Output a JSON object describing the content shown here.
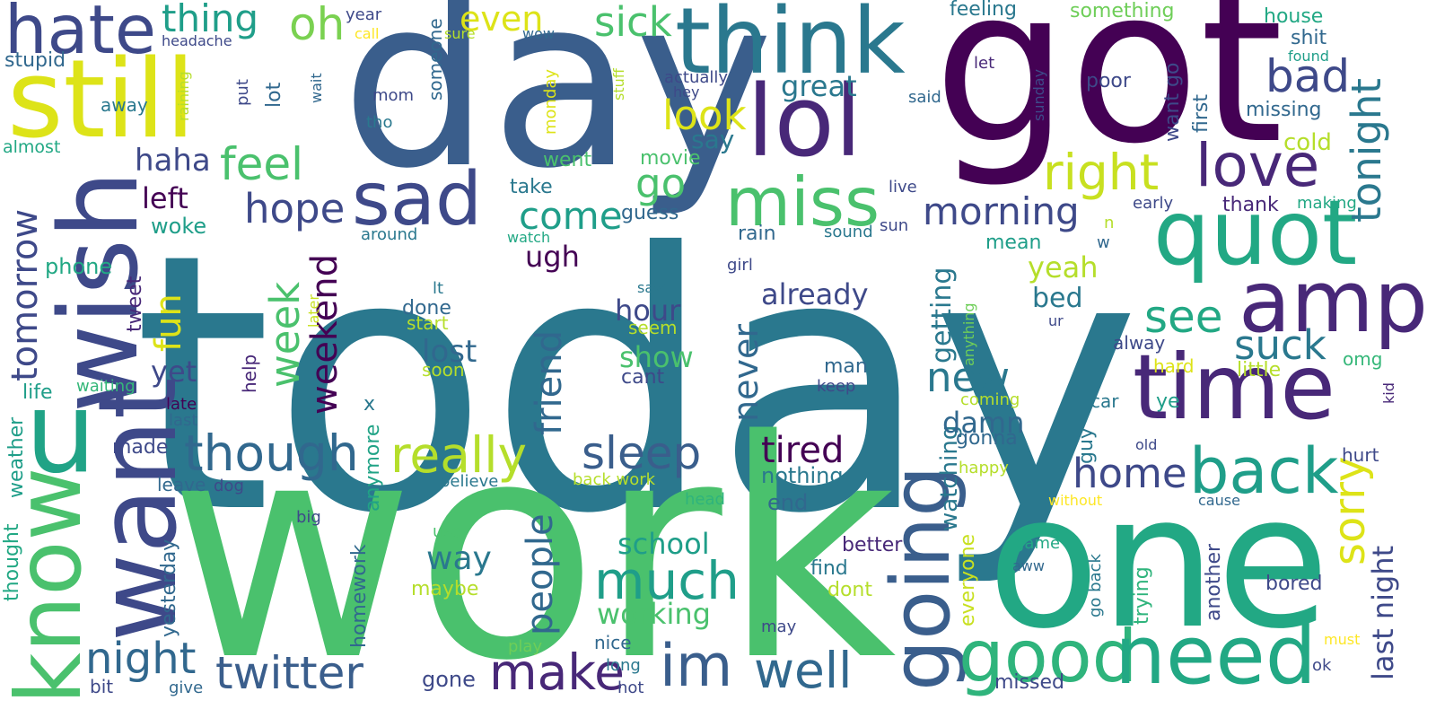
{
  "palette": {
    "p1": "#440154",
    "p2": "#482878",
    "p3": "#3e4989",
    "p4": "#31688e",
    "p5": "#26828e",
    "p6": "#1f9e89",
    "p7": "#35b779",
    "p8": "#6ece58",
    "p9": "#b5de2b",
    "p10": "#fde725"
  },
  "words": [
    {
      "text": "today",
      "color": "#2a788e"
    },
    {
      "text": "work",
      "color": "#4ac16d"
    },
    {
      "text": "day",
      "color": "#3a5e8c"
    },
    {
      "text": "got",
      "color": "#440154"
    },
    {
      "text": "one",
      "color": "#22a884"
    },
    {
      "text": "think",
      "color": "#2a788e"
    },
    {
      "text": "still",
      "color": "#dde318"
    },
    {
      "text": "wish",
      "color": "#3e4989"
    },
    {
      "text": "want",
      "color": "#3e4989"
    },
    {
      "text": "know",
      "color": "#4ac16d"
    },
    {
      "text": "u",
      "color": "#20a386"
    },
    {
      "text": "hate",
      "color": "#3e4989"
    },
    {
      "text": "lol",
      "color": "#482878"
    },
    {
      "text": "time",
      "color": "#482878"
    },
    {
      "text": "quot",
      "color": "#22a884"
    },
    {
      "text": "amp",
      "color": "#482878"
    },
    {
      "text": "going",
      "color": "#3a5e8c"
    },
    {
      "text": "good",
      "color": "#2fb47c"
    },
    {
      "text": "need",
      "color": "#22a884"
    },
    {
      "text": "sad",
      "color": "#3e4989"
    },
    {
      "text": "miss",
      "color": "#4ac16d"
    },
    {
      "text": "back",
      "color": "#1f9e89"
    },
    {
      "text": "love",
      "color": "#482878"
    },
    {
      "text": "im",
      "color": "#3a5e8c"
    },
    {
      "text": "well",
      "color": "#31688e"
    },
    {
      "text": "twitter",
      "color": "#3a5e8c"
    },
    {
      "text": "make",
      "color": "#482878"
    },
    {
      "text": "much",
      "color": "#1f9e89"
    },
    {
      "text": "really",
      "color": "#b5de2b"
    },
    {
      "text": "though",
      "color": "#31688e"
    },
    {
      "text": "sleep",
      "color": "#3a5e8c"
    },
    {
      "text": "night",
      "color": "#31688e"
    },
    {
      "text": "tomorrow",
      "color": "#3e4989"
    },
    {
      "text": "week",
      "color": "#4ac16d"
    },
    {
      "text": "weekend",
      "color": "#440154"
    },
    {
      "text": "friend",
      "color": "#31688e"
    },
    {
      "text": "people",
      "color": "#31688e"
    },
    {
      "text": "right",
      "color": "#c8e020"
    },
    {
      "text": "tonight",
      "color": "#2a788e"
    },
    {
      "text": "bad",
      "color": "#3e4989"
    },
    {
      "text": "sorry",
      "color": "#dde318"
    },
    {
      "text": "look",
      "color": "#dde318"
    },
    {
      "text": "feel",
      "color": "#4ac16d"
    },
    {
      "text": "hope",
      "color": "#3e4989"
    },
    {
      "text": "come",
      "color": "#1f9e89"
    },
    {
      "text": "morning",
      "color": "#3e4989"
    },
    {
      "text": "see",
      "color": "#22a884"
    },
    {
      "text": "suck",
      "color": "#2a788e"
    },
    {
      "text": "new",
      "color": "#2a788e"
    },
    {
      "text": "home",
      "color": "#3e4989"
    },
    {
      "text": "tired",
      "color": "#440154"
    },
    {
      "text": "sick",
      "color": "#4ac16d"
    },
    {
      "text": "even",
      "color": "#dde318"
    },
    {
      "text": "oh",
      "color": "#7ad151"
    },
    {
      "text": "thing",
      "color": "#1f9e89"
    },
    {
      "text": "go",
      "color": "#4ac16d"
    },
    {
      "text": "fun",
      "color": "#dde318"
    },
    {
      "text": "never",
      "color": "#31688e"
    },
    {
      "text": "last night",
      "color": "#3e4989"
    },
    {
      "text": "working",
      "color": "#4ac16d"
    },
    {
      "text": "school",
      "color": "#1f9e89"
    },
    {
      "text": "way",
      "color": "#2a788e"
    },
    {
      "text": "great",
      "color": "#2a788e"
    },
    {
      "text": "getting",
      "color": "#2a788e"
    },
    {
      "text": "watching",
      "color": "#2a788e"
    },
    {
      "text": "already",
      "color": "#3e4989"
    },
    {
      "text": "haha",
      "color": "#3e4989"
    },
    {
      "text": "left",
      "color": "#440154"
    },
    {
      "text": "hour",
      "color": "#3e4989"
    },
    {
      "text": "show",
      "color": "#4ac16d"
    },
    {
      "text": "lost",
      "color": "#31688e"
    },
    {
      "text": "yeah",
      "color": "#b5de2b"
    },
    {
      "text": "bed",
      "color": "#2a788e"
    },
    {
      "text": "say",
      "color": "#2a788e"
    },
    {
      "text": "damn",
      "color": "#31688e"
    },
    {
      "text": "ugh",
      "color": "#440154"
    },
    {
      "text": "yet",
      "color": "#3e4989"
    },
    {
      "text": "phone",
      "color": "#22a884"
    },
    {
      "text": "woke",
      "color": "#1f9e89"
    },
    {
      "text": "life",
      "color": "#1f9e89"
    },
    {
      "text": "made",
      "color": "#3e4989"
    },
    {
      "text": "stupid",
      "color": "#31688e"
    },
    {
      "text": "almost",
      "color": "#22a884"
    },
    {
      "text": "away",
      "color": "#2a788e"
    },
    {
      "text": "tweet",
      "color": "#482878"
    },
    {
      "text": "weather",
      "color": "#1f9e89"
    },
    {
      "text": "thought",
      "color": "#22a884"
    },
    {
      "text": "yesterday",
      "color": "#31688e"
    },
    {
      "text": "homework",
      "color": "#31688e"
    },
    {
      "text": "anymore",
      "color": "#20a386"
    },
    {
      "text": "x",
      "color": "#2a788e"
    },
    {
      "text": "leave",
      "color": "#31688e"
    },
    {
      "text": "dog",
      "color": "#3e4989"
    },
    {
      "text": "big",
      "color": "#3e4989"
    },
    {
      "text": "bit",
      "color": "#3e4989"
    },
    {
      "text": "give",
      "color": "#31688e"
    },
    {
      "text": "gone",
      "color": "#3e4989"
    },
    {
      "text": "hot",
      "color": "#3e4989"
    },
    {
      "text": "long",
      "color": "#2a788e"
    },
    {
      "text": "nice",
      "color": "#31688e"
    },
    {
      "text": "play",
      "color": "#6ece58"
    },
    {
      "text": "maybe",
      "color": "#b5de2b"
    },
    {
      "text": "use",
      "color": "#4ac16d"
    },
    {
      "text": "believe",
      "color": "#2a788e"
    },
    {
      "text": "back work",
      "color": "#b5de2b"
    },
    {
      "text": "head",
      "color": "#2fb47c"
    },
    {
      "text": "may",
      "color": "#3e4989"
    },
    {
      "text": "nothing",
      "color": "#2a788e"
    },
    {
      "text": "end",
      "color": "#31688e"
    },
    {
      "text": "better",
      "color": "#482878"
    },
    {
      "text": "find",
      "color": "#2a788e"
    },
    {
      "text": "dont",
      "color": "#b5de2b"
    },
    {
      "text": "everyone",
      "color": "#c8e020"
    },
    {
      "text": "gonna",
      "color": "#31688e"
    },
    {
      "text": "happy",
      "color": "#b5de2b"
    },
    {
      "text": "coming",
      "color": "#b5de2b"
    },
    {
      "text": "guy",
      "color": "#2a788e"
    },
    {
      "text": "missed",
      "color": "#3e4989"
    },
    {
      "text": "go back",
      "color": "#2a788e"
    },
    {
      "text": "trying",
      "color": "#2fb47c"
    },
    {
      "text": "another",
      "color": "#3e4989"
    },
    {
      "text": "bored",
      "color": "#3e4989"
    },
    {
      "text": "ok",
      "color": "#3e4989"
    },
    {
      "text": "must",
      "color": "#fde725"
    },
    {
      "text": "game",
      "color": "#22a884"
    },
    {
      "text": "aww",
      "color": "#31688e"
    },
    {
      "text": "without",
      "color": "#fde725"
    },
    {
      "text": "cause",
      "color": "#31688e"
    },
    {
      "text": "hurt",
      "color": "#3e4989"
    },
    {
      "text": "old",
      "color": "#3e4989"
    },
    {
      "text": "car",
      "color": "#2a788e"
    },
    {
      "text": "ye",
      "color": "#1f9e89"
    },
    {
      "text": "kid",
      "color": "#482878"
    },
    {
      "text": "omg",
      "color": "#35b779"
    },
    {
      "text": "hard",
      "color": "#dde318"
    },
    {
      "text": "little",
      "color": "#b5de2b"
    },
    {
      "text": "alway",
      "color": "#3e4989"
    },
    {
      "text": "ur",
      "color": "#3e4989"
    },
    {
      "text": "anything",
      "color": "#6ece58"
    },
    {
      "text": "keep",
      "color": "#3e4989"
    },
    {
      "text": "man",
      "color": "#31688e"
    },
    {
      "text": "cant",
      "color": "#3e4989"
    },
    {
      "text": "seem",
      "color": "#b5de2b"
    },
    {
      "text": "soon",
      "color": "#b5de2b"
    },
    {
      "text": "start",
      "color": "#b5de2b"
    },
    {
      "text": "done",
      "color": "#31688e"
    },
    {
      "text": "lt",
      "color": "#2a788e"
    },
    {
      "text": "saw",
      "color": "#2a788e"
    },
    {
      "text": "later",
      "color": "#c8e020"
    },
    {
      "text": "help",
      "color": "#482878"
    },
    {
      "text": "late",
      "color": "#440154"
    },
    {
      "text": "last",
      "color": "#31688e"
    },
    {
      "text": "waiting",
      "color": "#35b779"
    },
    {
      "text": "mean",
      "color": "#1f9e89"
    },
    {
      "text": "girl",
      "color": "#3e4989"
    },
    {
      "text": "rain",
      "color": "#31688e"
    },
    {
      "text": "sound",
      "color": "#2a788e"
    },
    {
      "text": "sun",
      "color": "#3e4989"
    },
    {
      "text": "n",
      "color": "#b5de2b"
    },
    {
      "text": "w",
      "color": "#31688e"
    },
    {
      "text": "around",
      "color": "#2a788e"
    },
    {
      "text": "watch",
      "color": "#22a884"
    },
    {
      "text": "guess",
      "color": "#31688e"
    },
    {
      "text": "take",
      "color": "#2a788e"
    },
    {
      "text": "went",
      "color": "#4ac16d"
    },
    {
      "text": "movie",
      "color": "#4ac16d"
    },
    {
      "text": "monday",
      "color": "#dde318"
    },
    {
      "text": "tho",
      "color": "#2a788e"
    },
    {
      "text": "mom",
      "color": "#3e4989"
    },
    {
      "text": "put",
      "color": "#3e4989"
    },
    {
      "text": "lot",
      "color": "#31688e"
    },
    {
      "text": "raining",
      "color": "#b5de2b"
    },
    {
      "text": "wait",
      "color": "#31688e"
    },
    {
      "text": "someone",
      "color": "#31688e"
    },
    {
      "text": "headache",
      "color": "#3e4989"
    },
    {
      "text": "call",
      "color": "#fde725"
    },
    {
      "text": "year",
      "color": "#3e4989"
    },
    {
      "text": "sure",
      "color": "#b5de2b"
    },
    {
      "text": "wow",
      "color": "#31688e"
    },
    {
      "text": "stuff",
      "color": "#b5de2b"
    },
    {
      "text": "hey",
      "color": "#3e4989"
    },
    {
      "text": "actually",
      "color": "#3e4989"
    },
    {
      "text": "feeling",
      "color": "#2a788e"
    },
    {
      "text": "something",
      "color": "#6ece58"
    },
    {
      "text": "house",
      "color": "#22a884"
    },
    {
      "text": "shit",
      "color": "#31688e"
    },
    {
      "text": "found",
      "color": "#1f9e89"
    },
    {
      "text": "let",
      "color": "#482878"
    },
    {
      "text": "poor",
      "color": "#3e4989"
    },
    {
      "text": "said",
      "color": "#31688e"
    },
    {
      "text": "sunday",
      "color": "#3e4989"
    },
    {
      "text": "want go",
      "color": "#3e4989"
    },
    {
      "text": "first",
      "color": "#31688e"
    },
    {
      "text": "missing",
      "color": "#31688e"
    },
    {
      "text": "cold",
      "color": "#b5de2b"
    },
    {
      "text": "thank",
      "color": "#482878"
    },
    {
      "text": "early",
      "color": "#3e4989"
    },
    {
      "text": "making",
      "color": "#22a884"
    },
    {
      "text": "live",
      "color": "#3e4989"
    }
  ]
}
